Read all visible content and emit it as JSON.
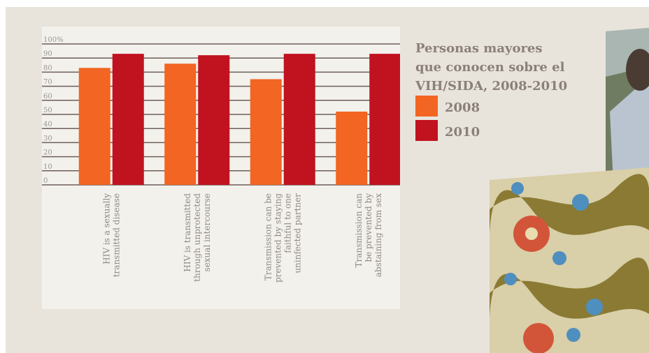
{
  "chart_data": {
    "type": "bar",
    "title_lines": [
      "Personas mayores",
      "que conocen sobre el",
      "VIH/SIDA, 2008-2010"
    ],
    "categories": [
      [
        "HIV is a sexually",
        "transmitted disease"
      ],
      [
        "HIV is transmitted",
        "through unprotected",
        "sexual intercourse"
      ],
      [
        "Transmission can be",
        "prevented by staying",
        "faithful to one",
        "uninfected partner"
      ],
      [
        "Transmission can",
        "be prevented by",
        "abstaining from sex"
      ]
    ],
    "series": [
      {
        "name": "2008",
        "color": "#f26522",
        "values": [
          83,
          86,
          75,
          52
        ]
      },
      {
        "name": "2010",
        "color": "#c1121f",
        "values": [
          93,
          92,
          93,
          93
        ]
      }
    ],
    "ylim": [
      0,
      100
    ],
    "yticks": [
      0,
      10,
      20,
      30,
      40,
      50,
      60,
      70,
      80,
      90,
      {
        "value": 100,
        "label": "100%"
      }
    ],
    "grid": true
  }
}
